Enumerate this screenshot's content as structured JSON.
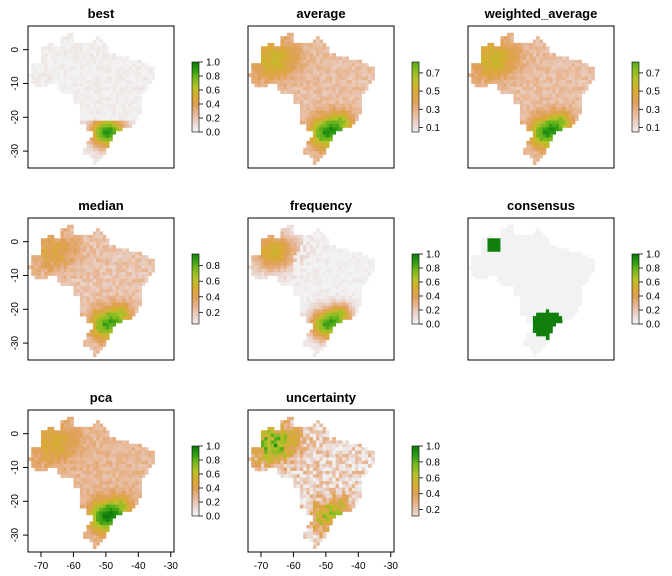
{
  "chart_data": {
    "type": "raster-map-grid",
    "colors": {
      "ramp": [
        "#f2f2f2",
        "#ead7d1",
        "#e8b898",
        "#e0a05a",
        "#d9ab34",
        "#b8c12a",
        "#7bba1f",
        "#2e9a14",
        "#0b7a0b"
      ],
      "land_low": "#f2f2f2",
      "frame": "#000000"
    },
    "x_axis": {
      "ticks": [
        "-70",
        "-60",
        "-50",
        "-40",
        "-30"
      ],
      "values": [
        -70,
        -60,
        -50,
        -40,
        -30
      ],
      "xlim": [
        -74,
        -29
      ]
    },
    "y_axis": {
      "ticks": [
        "0",
        "-10",
        "-20",
        "-30"
      ],
      "values": [
        0,
        -10,
        -20,
        -30
      ],
      "ylim": [
        -35,
        7
      ]
    },
    "panels": [
      {
        "title": "best",
        "pattern": "best",
        "legend_range": [
          0,
          1.0
        ],
        "legend_ticks": [
          "0.0",
          "0.2",
          "0.4",
          "0.6",
          "0.8",
          "1.0"
        ],
        "legend_values": [
          0,
          0.2,
          0.4,
          0.6,
          0.8,
          1.0
        ],
        "show_x_ticks": false,
        "show_y_ticks": true
      },
      {
        "title": "average",
        "pattern": "average",
        "legend_range": [
          0.05,
          0.82
        ],
        "legend_ticks": [
          "0.1",
          "0.3",
          "0.5",
          "0.7"
        ],
        "legend_values": [
          0.1,
          0.3,
          0.5,
          0.7
        ],
        "show_x_ticks": false,
        "show_y_ticks": false
      },
      {
        "title": "weighted_average",
        "pattern": "average",
        "legend_range": [
          0.05,
          0.82
        ],
        "legend_ticks": [
          "0.1",
          "0.3",
          "0.5",
          "0.7"
        ],
        "legend_values": [
          0.1,
          0.3,
          0.5,
          0.7
        ],
        "show_x_ticks": false,
        "show_y_ticks": false
      },
      {
        "title": "median",
        "pattern": "median",
        "legend_range": [
          0.05,
          0.95
        ],
        "legend_ticks": [
          "0.2",
          "0.4",
          "0.6",
          "0.8"
        ],
        "legend_values": [
          0.2,
          0.4,
          0.6,
          0.8
        ],
        "show_x_ticks": false,
        "show_y_ticks": true
      },
      {
        "title": "frequency",
        "pattern": "frequency",
        "legend_range": [
          0,
          1.0
        ],
        "legend_ticks": [
          "0.0",
          "0.2",
          "0.4",
          "0.6",
          "0.8",
          "1.0"
        ],
        "legend_values": [
          0,
          0.2,
          0.4,
          0.6,
          0.8,
          1.0
        ],
        "show_x_ticks": false,
        "show_y_ticks": false
      },
      {
        "title": "consensus",
        "pattern": "consensus",
        "legend_range": [
          0,
          1.0
        ],
        "legend_ticks": [
          "0.0",
          "0.2",
          "0.4",
          "0.6",
          "0.8",
          "1.0"
        ],
        "legend_values": [
          0,
          0.2,
          0.4,
          0.6,
          0.8,
          1.0
        ],
        "show_x_ticks": false,
        "show_y_ticks": false
      },
      {
        "title": "pca",
        "pattern": "pca",
        "legend_range": [
          0,
          1.0
        ],
        "legend_ticks": [
          "0.0",
          "0.2",
          "0.4",
          "0.6",
          "0.8",
          "1.0"
        ],
        "legend_values": [
          0,
          0.2,
          0.4,
          0.6,
          0.8,
          1.0
        ],
        "show_x_ticks": true,
        "show_y_ticks": true
      },
      {
        "title": "uncertainty",
        "pattern": "uncertainty",
        "legend_range": [
          0.12,
          1.0
        ],
        "legend_ticks": [
          "0.2",
          "0.4",
          "0.6",
          "0.8",
          "1.0"
        ],
        "legend_values": [
          0.2,
          0.4,
          0.6,
          0.8,
          1.0
        ],
        "show_x_ticks": true,
        "show_y_ticks": false
      }
    ],
    "brazil_outline": [
      [
        -73.5,
        -7.5
      ],
      [
        -73.0,
        -4.5
      ],
      [
        -70.0,
        -4.0
      ],
      [
        -69.5,
        -1.0
      ],
      [
        -70.0,
        1.0
      ],
      [
        -67.0,
        1.7
      ],
      [
        -65.0,
        1.0
      ],
      [
        -63.5,
        2.2
      ],
      [
        -64.0,
        4.0
      ],
      [
        -62.0,
        4.5
      ],
      [
        -60.0,
        5.2
      ],
      [
        -59.5,
        2.5
      ],
      [
        -56.5,
        1.9
      ],
      [
        -54.5,
        2.3
      ],
      [
        -52.0,
        4.0
      ],
      [
        -51.0,
        3.0
      ],
      [
        -50.0,
        1.5
      ],
      [
        -49.0,
        0.0
      ],
      [
        -48.0,
        -1.0
      ],
      [
        -44.0,
        -2.4
      ],
      [
        -41.0,
        -2.9
      ],
      [
        -38.5,
        -3.7
      ],
      [
        -35.5,
        -5.0
      ],
      [
        -35.0,
        -7.0
      ],
      [
        -35.2,
        -9.0
      ],
      [
        -37.0,
        -11.0
      ],
      [
        -38.8,
        -13.0
      ],
      [
        -39.0,
        -17.0
      ],
      [
        -39.8,
        -19.5
      ],
      [
        -41.0,
        -21.5
      ],
      [
        -43.0,
        -23.0
      ],
      [
        -45.0,
        -23.6
      ],
      [
        -47.5,
        -25.0
      ],
      [
        -48.6,
        -27.5
      ],
      [
        -48.8,
        -28.7
      ],
      [
        -50.0,
        -30.0
      ],
      [
        -51.0,
        -31.5
      ],
      [
        -52.5,
        -33.3
      ],
      [
        -53.5,
        -33.7
      ],
      [
        -53.8,
        -32.0
      ],
      [
        -55.5,
        -31.0
      ],
      [
        -57.5,
        -30.2
      ],
      [
        -56.0,
        -28.0
      ],
      [
        -54.0,
        -26.0
      ],
      [
        -54.5,
        -24.0
      ],
      [
        -55.5,
        -23.5
      ],
      [
        -56.0,
        -22.0
      ],
      [
        -58.0,
        -22.0
      ],
      [
        -58.0,
        -19.8
      ],
      [
        -57.5,
        -17.5
      ],
      [
        -58.5,
        -16.0
      ],
      [
        -60.0,
        -16.0
      ],
      [
        -60.2,
        -13.5
      ],
      [
        -62.0,
        -13.0
      ],
      [
        -64.5,
        -12.3
      ],
      [
        -65.3,
        -10.0
      ],
      [
        -68.0,
        -10.5
      ],
      [
        -70.5,
        -11.0
      ],
      [
        -72.5,
        -10.0
      ]
    ]
  }
}
